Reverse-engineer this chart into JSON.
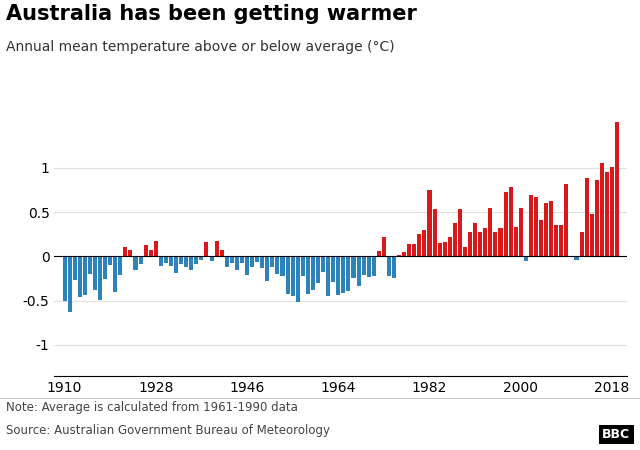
{
  "title": "Australia has been getting warmer",
  "subtitle": "Annual mean temperature above or below average (°C)",
  "note": "Note: Average is calculated from 1961-1990 data",
  "source": "Source: Australian Government Bureau of Meteorology",
  "xlim": [
    1908,
    2021
  ],
  "ylim": [
    -1.35,
    1.6
  ],
  "yticks": [
    -1,
    -0.5,
    0,
    0.5,
    1
  ],
  "ytick_labels": [
    "-1",
    "-0.5",
    "0",
    "0.5",
    "1"
  ],
  "xticks": [
    1910,
    1928,
    1946,
    1964,
    1982,
    2000,
    2018
  ],
  "color_positive": "#d7191c",
  "color_negative": "#2b83ba",
  "background_color": "#ffffff",
  "grid_color": "#e0e0e0",
  "years": [
    1910,
    1911,
    1912,
    1913,
    1914,
    1915,
    1916,
    1917,
    1918,
    1919,
    1920,
    1921,
    1922,
    1923,
    1924,
    1925,
    1926,
    1927,
    1928,
    1929,
    1930,
    1931,
    1932,
    1933,
    1934,
    1935,
    1936,
    1937,
    1938,
    1939,
    1940,
    1941,
    1942,
    1943,
    1944,
    1945,
    1946,
    1947,
    1948,
    1949,
    1950,
    1951,
    1952,
    1953,
    1954,
    1955,
    1956,
    1957,
    1958,
    1959,
    1960,
    1961,
    1962,
    1963,
    1964,
    1965,
    1966,
    1967,
    1968,
    1969,
    1970,
    1971,
    1972,
    1973,
    1974,
    1975,
    1976,
    1977,
    1978,
    1979,
    1980,
    1981,
    1982,
    1983,
    1984,
    1985,
    1986,
    1987,
    1988,
    1989,
    1990,
    1991,
    1992,
    1993,
    1994,
    1995,
    1996,
    1997,
    1998,
    1999,
    2000,
    2001,
    2002,
    2003,
    2004,
    2005,
    2006,
    2007,
    2008,
    2009,
    2010,
    2011,
    2012,
    2013,
    2014,
    2015,
    2016,
    2017,
    2018,
    2019
  ],
  "anomalies": [
    -0.5,
    -0.63,
    -0.27,
    -0.46,
    -0.44,
    -0.2,
    -0.38,
    -0.49,
    -0.26,
    -0.1,
    -0.4,
    -0.21,
    0.1,
    0.07,
    -0.15,
    -0.09,
    0.13,
    0.07,
    0.17,
    -0.11,
    -0.08,
    -0.11,
    -0.19,
    -0.09,
    -0.12,
    -0.15,
    -0.09,
    -0.04,
    0.16,
    -0.05,
    0.17,
    0.07,
    -0.12,
    -0.07,
    -0.16,
    -0.08,
    -0.21,
    -0.12,
    -0.06,
    -0.13,
    -0.28,
    -0.12,
    -0.2,
    -0.22,
    -0.43,
    -0.45,
    -0.52,
    -0.22,
    -0.43,
    -0.38,
    -0.3,
    -0.18,
    -0.45,
    -0.29,
    -0.44,
    -0.41,
    -0.39,
    -0.25,
    -0.33,
    -0.21,
    -0.23,
    -0.22,
    0.06,
    0.22,
    -0.22,
    -0.24,
    0.02,
    0.05,
    0.14,
    0.14,
    0.25,
    0.3,
    0.75,
    0.53,
    0.15,
    0.16,
    0.22,
    0.38,
    0.53,
    0.1,
    0.27,
    0.38,
    0.27,
    0.32,
    0.55,
    0.27,
    0.32,
    0.73,
    0.78,
    0.33,
    0.55,
    -0.05,
    0.69,
    0.67,
    0.41,
    0.6,
    0.63,
    0.35,
    0.35,
    0.82,
    -0.01,
    -0.04,
    0.27,
    0.89,
    0.48,
    0.86,
    1.05,
    0.95,
    1.01,
    1.52
  ]
}
